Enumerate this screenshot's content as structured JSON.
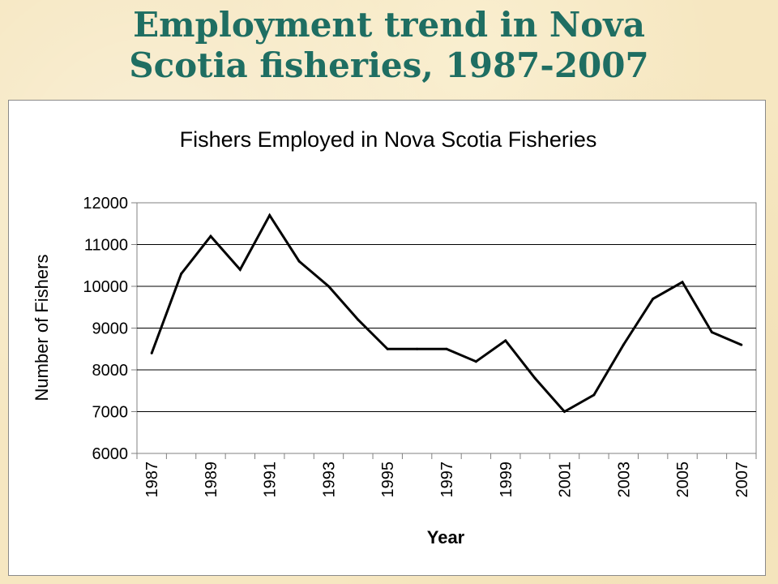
{
  "slide": {
    "title_line1": "Employment trend in Nova",
    "title_line2": "Scotia fisheries, 1987-2007"
  },
  "chart_data": {
    "type": "line",
    "title": "Fishers Employed in Nova Scotia Fisheries",
    "xlabel": "Year",
    "ylabel": "Number of Fishers",
    "x": [
      1987,
      1988,
      1989,
      1990,
      1991,
      1992,
      1993,
      1994,
      1995,
      1996,
      1997,
      1998,
      1999,
      2000,
      2001,
      2002,
      2003,
      2004,
      2005,
      2006,
      2007
    ],
    "series": [
      {
        "values": [
          8400,
          10300,
          11200,
          10400,
          11700,
          10600,
          10000,
          9200,
          8500,
          8500,
          8500,
          8200,
          8700,
          7800,
          7000,
          7400,
          8600,
          9700,
          10100,
          8900,
          8600
        ]
      }
    ],
    "x_tick_labels": [
      "1987",
      "1989",
      "1991",
      "1993",
      "1995",
      "1997",
      "1999",
      "2001",
      "2003",
      "2005",
      "2007"
    ],
    "y_ticks": [
      6000,
      7000,
      8000,
      9000,
      10000,
      11000,
      12000
    ],
    "ylim": [
      6000,
      12000
    ],
    "grid": "horizontal",
    "legend": "none",
    "line_color": "#000000"
  }
}
